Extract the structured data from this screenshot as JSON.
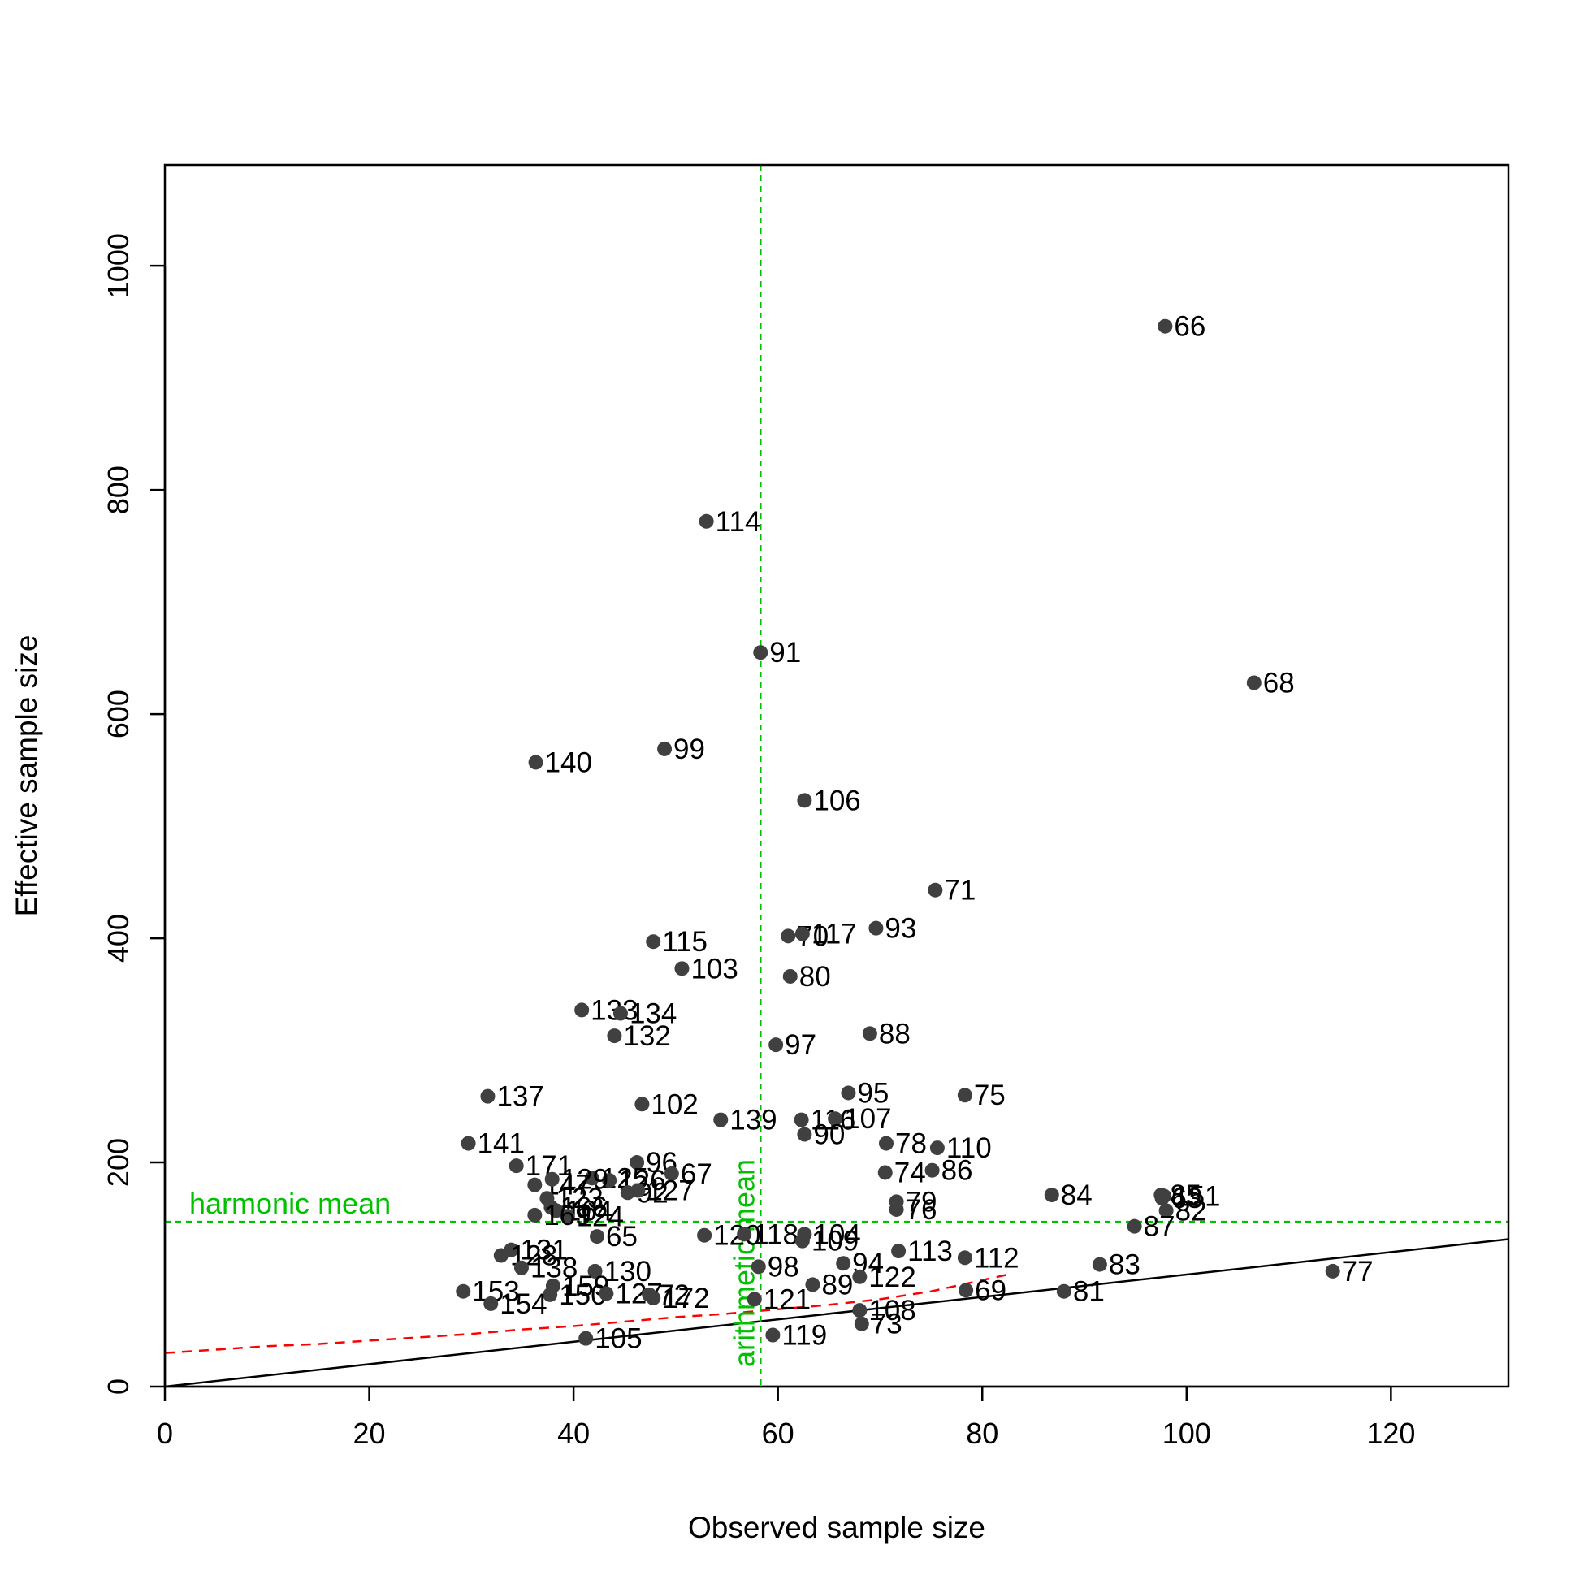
{
  "chart_data": {
    "type": "scatter",
    "title": "",
    "xlabel": "Observed sample size",
    "ylabel": "Effective sample size",
    "xlim": [
      0,
      131.5
    ],
    "ylim": [
      0,
      1090
    ],
    "x_ticks": [
      0,
      20,
      40,
      60,
      80,
      100,
      120
    ],
    "y_ticks": [
      0,
      200,
      400,
      600,
      800,
      1000
    ],
    "x_tick_labels": [
      "0",
      "20",
      "40",
      "60",
      "80",
      "100",
      "120"
    ],
    "y_tick_labels": [
      "0",
      "200",
      "400",
      "600",
      "800",
      "1000"
    ],
    "grid": false,
    "legend": "none",
    "colors": {
      "points": "#404040",
      "reference_lines": "#00c000",
      "trend": "#ff0000",
      "identity": "#000000"
    },
    "points": [
      {
        "label": "66",
        "x": 97.9,
        "y": 946
      },
      {
        "label": "114",
        "x": 53.0,
        "y": 772
      },
      {
        "label": "91",
        "x": 58.3,
        "y": 655
      },
      {
        "label": "68",
        "x": 106.6,
        "y": 628
      },
      {
        "label": "140",
        "x": 36.3,
        "y": 557
      },
      {
        "label": "99",
        "x": 48.9,
        "y": 569
      },
      {
        "label": "106",
        "x": 62.6,
        "y": 523
      },
      {
        "label": "71",
        "x": 75.4,
        "y": 443
      },
      {
        "label": "70",
        "x": 61.0,
        "y": 402
      },
      {
        "label": "117",
        "x": 62.4,
        "y": 404
      },
      {
        "label": "93",
        "x": 69.6,
        "y": 409
      },
      {
        "label": "115",
        "x": 47.8,
        "y": 397
      },
      {
        "label": "103",
        "x": 50.6,
        "y": 373
      },
      {
        "label": "80",
        "x": 61.2,
        "y": 366
      },
      {
        "label": "133",
        "x": 40.8,
        "y": 336
      },
      {
        "label": "134",
        "x": 44.6,
        "y": 333
      },
      {
        "label": "132",
        "x": 44.0,
        "y": 313
      },
      {
        "label": "88",
        "x": 69.0,
        "y": 315
      },
      {
        "label": "97",
        "x": 59.8,
        "y": 305
      },
      {
        "label": "137",
        "x": 31.6,
        "y": 259
      },
      {
        "label": "102",
        "x": 46.7,
        "y": 252
      },
      {
        "label": "95",
        "x": 66.9,
        "y": 262
      },
      {
        "label": "75",
        "x": 78.3,
        "y": 260
      },
      {
        "label": "139",
        "x": 54.4,
        "y": 238
      },
      {
        "label": "116",
        "x": 62.3,
        "y": 238
      },
      {
        "label": "107",
        "x": 65.6,
        "y": 239
      },
      {
        "label": "90",
        "x": 62.6,
        "y": 225
      },
      {
        "label": "141",
        "x": 29.7,
        "y": 217
      },
      {
        "label": "78",
        "x": 70.6,
        "y": 217
      },
      {
        "label": "110",
        "x": 75.6,
        "y": 213
      },
      {
        "label": "171",
        "x": 34.4,
        "y": 197
      },
      {
        "label": "96",
        "x": 46.2,
        "y": 200
      },
      {
        "label": "86",
        "x": 75.1,
        "y": 193
      },
      {
        "label": "67",
        "x": 49.6,
        "y": 190
      },
      {
        "label": "125",
        "x": 41.8,
        "y": 186
      },
      {
        "label": "126",
        "x": 43.5,
        "y": 184
      },
      {
        "label": "74",
        "x": 70.5,
        "y": 191
      },
      {
        "label": "147",
        "x": 36.2,
        "y": 180
      },
      {
        "label": "129",
        "x": 37.9,
        "y": 185
      },
      {
        "label": "84",
        "x": 86.8,
        "y": 171
      },
      {
        "label": "85",
        "x": 97.5,
        "y": 171
      },
      {
        "label": "151",
        "x": 97.8,
        "y": 170
      },
      {
        "label": "63",
        "x": 97.6,
        "y": 168
      },
      {
        "label": "92",
        "x": 45.3,
        "y": 173
      },
      {
        "label": "127",
        "x": 46.3,
        "y": 175
      },
      {
        "label": "123",
        "x": 37.4,
        "y": 168
      },
      {
        "label": "79",
        "x": 71.6,
        "y": 165
      },
      {
        "label": "76",
        "x": 71.6,
        "y": 158
      },
      {
        "label": "82",
        "x": 98.0,
        "y": 157
      },
      {
        "label": "166",
        "x": 37.8,
        "y": 160
      },
      {
        "label": "164",
        "x": 38.3,
        "y": 157
      },
      {
        "label": "124",
        "x": 39.4,
        "y": 152
      },
      {
        "label": "169",
        "x": 36.2,
        "y": 153
      },
      {
        "label": "87",
        "x": 94.9,
        "y": 143
      },
      {
        "label": "120",
        "x": 52.8,
        "y": 135
      },
      {
        "label": "118",
        "x": 56.7,
        "y": 136
      },
      {
        "label": "104",
        "x": 62.6,
        "y": 136
      },
      {
        "label": "109",
        "x": 62.4,
        "y": 130
      },
      {
        "label": "65",
        "x": 42.3,
        "y": 134
      },
      {
        "label": "113",
        "x": 71.8,
        "y": 121
      },
      {
        "label": "112",
        "x": 78.3,
        "y": 115
      },
      {
        "label": "131",
        "x": 33.9,
        "y": 122
      },
      {
        "label": "128",
        "x": 32.9,
        "y": 117
      },
      {
        "label": "83",
        "x": 91.5,
        "y": 109
      },
      {
        "label": "94",
        "x": 66.4,
        "y": 110
      },
      {
        "label": "138",
        "x": 34.9,
        "y": 106
      },
      {
        "label": "130",
        "x": 42.1,
        "y": 103
      },
      {
        "label": "98",
        "x": 58.1,
        "y": 107
      },
      {
        "label": "77",
        "x": 114.3,
        "y": 103
      },
      {
        "label": "122",
        "x": 68.0,
        "y": 98
      },
      {
        "label": "89",
        "x": 63.4,
        "y": 91
      },
      {
        "label": "159",
        "x": 38.0,
        "y": 90
      },
      {
        "label": "153",
        "x": 29.2,
        "y": 85
      },
      {
        "label": "69",
        "x": 78.4,
        "y": 86
      },
      {
        "label": "81",
        "x": 88.0,
        "y": 85
      },
      {
        "label": "150",
        "x": 37.7,
        "y": 82
      },
      {
        "label": "127b",
        "x": 43.2,
        "y": 83
      },
      {
        "label": "72",
        "x": 47.4,
        "y": 82
      },
      {
        "label": "172",
        "x": 47.8,
        "y": 79
      },
      {
        "label": "121",
        "x": 57.7,
        "y": 78
      },
      {
        "label": "154",
        "x": 31.9,
        "y": 74
      },
      {
        "label": "108",
        "x": 68.0,
        "y": 68
      },
      {
        "label": "73",
        "x": 68.2,
        "y": 56
      },
      {
        "label": "105",
        "x": 41.2,
        "y": 43
      },
      {
        "label": "119",
        "x": 59.5,
        "y": 46
      }
    ],
    "point_text": {
      "127b": "127"
    },
    "reference_lines": {
      "harmonic_mean": {
        "label": "harmonic mean",
        "y": 147
      },
      "arithmetic_mean": {
        "label": "arithmetic mean",
        "x": 58.3
      }
    },
    "identity_line": {
      "slope": 1,
      "intercept": 0
    },
    "trend_line": [
      [
        0,
        30
      ],
      [
        5,
        33
      ],
      [
        10,
        36
      ],
      [
        15,
        38
      ],
      [
        20,
        41
      ],
      [
        25,
        44
      ],
      [
        30,
        47
      ],
      [
        35,
        51
      ],
      [
        40,
        54
      ],
      [
        45,
        58
      ],
      [
        50,
        62
      ],
      [
        55,
        65
      ],
      [
        60,
        69
      ],
      [
        65,
        73
      ],
      [
        70,
        78
      ],
      [
        75,
        85
      ],
      [
        80,
        95
      ],
      [
        83,
        101
      ]
    ]
  }
}
